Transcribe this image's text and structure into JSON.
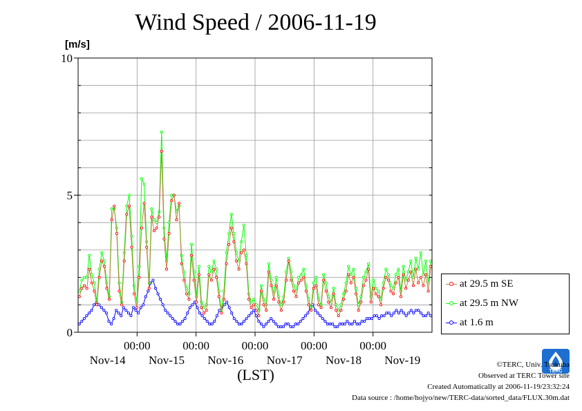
{
  "title": "Wind Speed / 2006-11-19",
  "unit_label": "[m/s]",
  "x_caption": "(LST)",
  "credits": [
    "©TERC, Univ. Tsukuba",
    "Observed at TERC Tower site",
    "Created Automatically at 2006-11-19/23:32:24",
    "Data source : /home/hojyo/new/TERC-data/sorted_data/FLUX.30m.dat"
  ],
  "logo_text": "TERC",
  "chart_data": {
    "type": "line",
    "ylim": [
      0,
      10
    ],
    "yticks": [
      0,
      5,
      10
    ],
    "y_minor_step": 1,
    "x_days": 6,
    "time_labels": [
      "00:00",
      "00:00",
      "00:00",
      "00:00",
      "00:00"
    ],
    "date_labels": [
      "Nov-14",
      "Nov-15",
      "Nov-16",
      "Nov-17",
      "Nov-18",
      "Nov-19"
    ],
    "grid": true,
    "legend_position": "bottom-right outside",
    "points_per_day": 24,
    "series": [
      {
        "name": "at 29.5 m SE",
        "color": "#ff0000",
        "values": [
          1.3,
          1.6,
          1.7,
          1.6,
          2.3,
          1.8,
          1.5,
          1.0,
          2.0,
          2.6,
          2.4,
          1.6,
          1.2,
          4.1,
          4.6,
          3.6,
          1.5,
          1.0,
          2.6,
          4.3,
          4.6,
          3.1,
          1.4,
          0.9,
          2.0,
          3.8,
          4.7,
          3.1,
          1.6,
          4.2,
          3.7,
          3.8,
          4.2,
          6.6,
          3.4,
          2.3,
          3.6,
          4.8,
          5.0,
          4.1,
          4.7,
          2.5,
          1.9,
          1.4,
          1.2,
          2.8,
          1.9,
          1.1,
          2.1,
          0.9,
          0.7,
          0.8,
          2.1,
          1.9,
          2.3,
          2.0,
          1.3,
          0.7,
          1.2,
          2.5,
          3.2,
          3.8,
          3.3,
          2.6,
          2.3,
          2.9,
          3.0,
          2.5,
          1.2,
          0.9,
          1.0,
          0.8,
          0.6,
          1.5,
          1.0,
          0.8,
          2.2,
          1.7,
          1.2,
          1.7,
          1.1,
          0.8,
          1.1,
          1.9,
          2.6,
          1.9,
          1.5,
          1.3,
          1.8,
          1.9,
          2.0,
          1.5,
          1.0,
          0.8,
          1.6,
          1.7,
          1.0,
          0.9,
          1.9,
          1.5,
          1.1,
          0.9,
          1.4,
          0.8,
          0.6,
          0.8,
          1.2,
          1.5,
          2.1,
          1.8,
          2.0,
          1.4,
          0.8,
          1.1,
          1.7,
          1.9,
          2.3,
          1.1,
          1.6,
          1.4,
          1.3,
          1.0,
          1.6,
          2.0,
          1.9,
          1.5,
          1.4,
          1.8,
          2.0,
          1.3,
          2.1,
          1.6,
          1.9,
          2.2,
          1.7,
          2.3,
          1.8,
          2.0,
          1.7,
          2.1,
          1.5,
          2.4
        ]
      },
      {
        "name": "at 29.5 m NW",
        "color": "#00ff00",
        "values": [
          1.5,
          1.9,
          2.0,
          2.0,
          2.8,
          2.1,
          1.8,
          1.1,
          2.3,
          2.9,
          2.6,
          1.8,
          1.3,
          4.5,
          4.5,
          3.8,
          1.8,
          1.1,
          2.9,
          4.6,
          5.0,
          3.5,
          1.7,
          1.1,
          2.4,
          5.6,
          5.4,
          3.3,
          1.8,
          4.5,
          4.1,
          4.0,
          4.4,
          7.3,
          3.8,
          2.6,
          4.0,
          5.0,
          5.0,
          4.4,
          4.6,
          2.8,
          2.2,
          1.6,
          1.4,
          3.2,
          2.2,
          1.3,
          2.4,
          1.1,
          0.9,
          1.0,
          2.4,
          2.2,
          2.6,
          2.3,
          1.5,
          0.8,
          1.5,
          2.9,
          3.6,
          4.3,
          3.6,
          2.9,
          2.6,
          3.3,
          3.9,
          2.8,
          1.4,
          1.1,
          1.2,
          1.0,
          0.8,
          1.7,
          1.2,
          1.0,
          2.5,
          1.9,
          1.4,
          2.0,
          1.3,
          1.0,
          1.3,
          2.2,
          2.7,
          2.2,
          1.7,
          1.5,
          2.0,
          2.1,
          2.3,
          1.7,
          1.2,
          0.9,
          1.8,
          2.0,
          1.2,
          1.0,
          2.1,
          1.8,
          1.3,
          1.1,
          1.6,
          1.0,
          0.8,
          1.0,
          1.4,
          1.8,
          2.4,
          2.1,
          2.3,
          1.6,
          1.0,
          1.3,
          2.0,
          2.2,
          2.5,
          1.3,
          1.9,
          1.6,
          1.5,
          1.2,
          1.8,
          2.3,
          2.1,
          1.7,
          1.6,
          2.1,
          2.3,
          1.5,
          2.4,
          1.9,
          2.2,
          2.6,
          2.0,
          2.7,
          2.3,
          2.9,
          2.1,
          2.6,
          1.8,
          2.6
        ]
      },
      {
        "name": "at 1.6 m",
        "color": "#0000ff",
        "values": [
          0.3,
          0.4,
          0.5,
          0.6,
          0.7,
          0.8,
          1.0,
          1.1,
          1.0,
          0.9,
          0.8,
          0.7,
          0.4,
          0.3,
          0.5,
          0.8,
          0.7,
          0.6,
          0.9,
          0.8,
          0.7,
          0.6,
          0.9,
          0.8,
          0.7,
          0.9,
          1.0,
          1.3,
          1.5,
          1.8,
          1.9,
          1.6,
          1.4,
          1.2,
          1.0,
          0.8,
          0.7,
          0.6,
          0.5,
          0.4,
          0.3,
          0.3,
          0.4,
          0.5,
          0.7,
          0.9,
          1.0,
          1.1,
          0.9,
          0.7,
          0.6,
          0.5,
          0.4,
          0.3,
          0.3,
          0.4,
          0.6,
          0.8,
          0.9,
          1.0,
          1.1,
          0.9,
          0.7,
          0.5,
          0.4,
          0.3,
          0.3,
          0.4,
          0.5,
          0.6,
          0.7,
          0.8,
          0.6,
          0.4,
          0.3,
          0.2,
          0.3,
          0.4,
          0.5,
          0.4,
          0.3,
          0.2,
          0.2,
          0.2,
          0.3,
          0.3,
          0.2,
          0.2,
          0.3,
          0.3,
          0.4,
          0.5,
          0.6,
          0.7,
          0.9,
          1.0,
          0.8,
          0.7,
          0.6,
          0.5,
          0.4,
          0.3,
          0.3,
          0.3,
          0.2,
          0.2,
          0.3,
          0.3,
          0.3,
          0.4,
          0.3,
          0.3,
          0.4,
          0.3,
          0.3,
          0.4,
          0.4,
          0.5,
          0.5,
          0.5,
          0.6,
          0.6,
          0.5,
          0.6,
          0.6,
          0.7,
          0.7,
          0.6,
          0.7,
          0.8,
          0.7,
          0.8,
          0.7,
          0.6,
          0.7,
          0.8,
          0.7,
          0.8,
          0.8,
          0.7,
          0.6,
          0.6,
          0.7,
          0.6
        ]
      }
    ]
  }
}
